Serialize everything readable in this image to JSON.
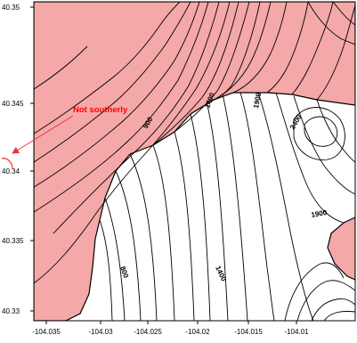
{
  "map": {
    "x_axis": {
      "ticks": [
        "-104.035",
        "-104.03",
        "-104.025",
        "-104.02",
        "-104.015",
        "-104.01"
      ]
    },
    "y_axis": {
      "ticks": [
        "40.35",
        "40.345",
        "40.34",
        "40.335",
        "40.33"
      ]
    },
    "contour_labels": [
      "900",
      "1400",
      "1900",
      "2400",
      "1900",
      "800",
      "1400"
    ],
    "callout": {
      "text": "Not southerly",
      "color": "#ff0000"
    },
    "colors": {
      "shaded_region": "#f5a8a8",
      "contour_line": "#000000",
      "callout": "#ff0000"
    }
  }
}
